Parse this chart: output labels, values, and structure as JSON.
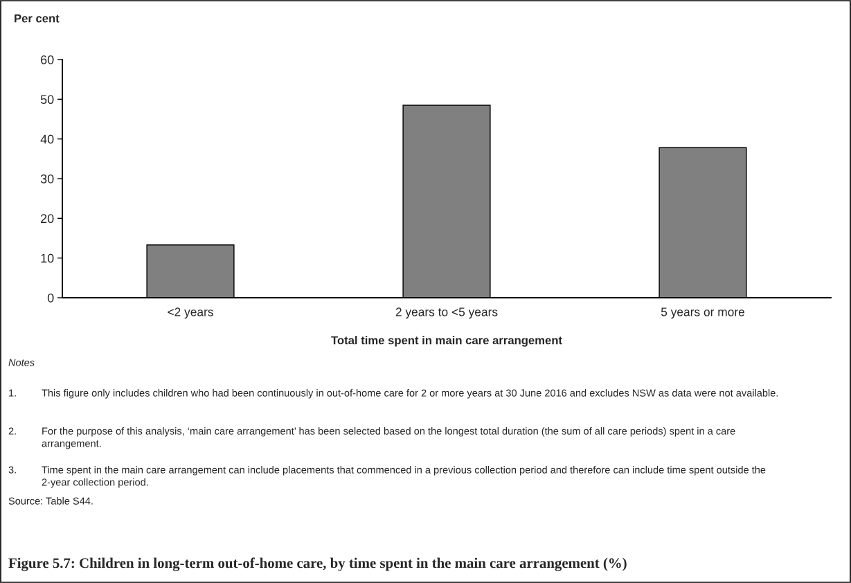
{
  "chart_data": {
    "type": "bar",
    "title": "Figure 5.7: Children in long-term out-of-home care, by time spent in the main care arrangement (%)",
    "ylabel": "Per cent",
    "xlabel": "Total time spent in main care arrangement",
    "categories": [
      "<2 years",
      "2 years to <5 years",
      "5 years or more"
    ],
    "values": [
      13.3,
      48.5,
      37.8
    ],
    "color": "#808080",
    "ylim": [
      0,
      60
    ],
    "yticks": [
      0,
      10,
      20,
      30,
      40,
      50,
      60
    ],
    "grid": false,
    "annotations": [
      "Notes",
      "1. This figure only includes children who had been continuously in out-of-home care for 2 or more years at 30 June 2016 and excludes NSW as data were not available.",
      "2. For the purpose of this analysis, ‘main care arrangement’ has been selected based on the longest total duration (the sum of all care periods) spent in a care arrangement.",
      "3. Time spent in the main care arrangement can include placements that commenced in a previous collection period and therefore can include time spent outside the 2-year collection period.",
      "Source: Table S44."
    ]
  }
}
